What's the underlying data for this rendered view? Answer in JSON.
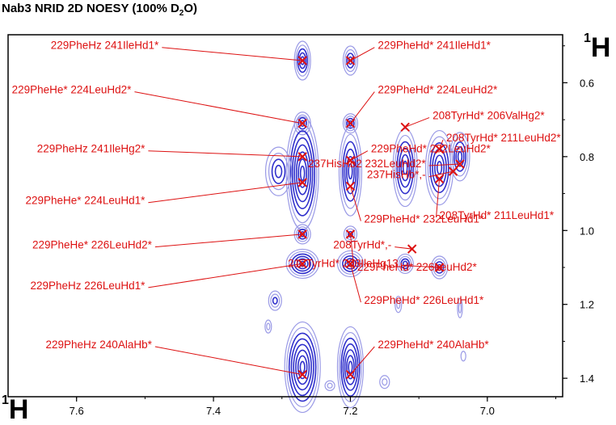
{
  "title": {
    "main": "Nab3 NRID  2D NOESY (100% D",
    "subscript": "2",
    "suffix": "O)"
  },
  "axis_labels": {
    "right": {
      "sup": "1",
      "text": "H"
    },
    "bottom": {
      "sup": "1",
      "text": "H"
    }
  },
  "colors": {
    "contour": "#3030cc",
    "contour_light": "#9a9ae6",
    "annotation": "#dd1111",
    "frame": "#000000"
  },
  "chart_data": {
    "type": "heatmap",
    "subtype": "2D NMR NOESY contour plot",
    "xlabel": "1H",
    "ylabel": "1H",
    "xlim": [
      7.7,
      6.89
    ],
    "ylim": [
      0.47,
      1.45
    ],
    "x_ticks": [
      7.6,
      7.4,
      7.2,
      7.0
    ],
    "x_tick_labels": [
      "7.6",
      "7.4",
      "7.2",
      "7.0"
    ],
    "y_ticks": [
      0.6,
      0.8,
      1.0,
      1.2,
      1.4
    ],
    "y_tick_labels": [
      "0.6",
      "0.8",
      "1.0",
      "1.2",
      "1.4"
    ],
    "peaks": [
      {
        "label": "229PheHz 241IleHd1*",
        "x": 7.27,
        "y": 0.54,
        "lx": 7.48,
        "ly": 0.5
      },
      {
        "label": "229PheHd* 241IleHd1*",
        "x": 7.2,
        "y": 0.54,
        "lx": 7.16,
        "ly": 0.5
      },
      {
        "label": "229PheHe* 224LeuHd2*",
        "x": 7.27,
        "y": 0.71,
        "lx": 7.52,
        "ly": 0.62
      },
      {
        "label": "229PheHd* 224LeuHd2*",
        "x": 7.2,
        "y": 0.71,
        "lx": 7.16,
        "ly": 0.62
      },
      {
        "label": "208TyrHd* 206ValHg2*",
        "x": 7.12,
        "y": 0.72,
        "lx": 7.08,
        "ly": 0.69
      },
      {
        "label": "208TyrHd* 211LeuHd2*",
        "x": 7.07,
        "y": 0.78,
        "lx": 7.06,
        "ly": 0.75
      },
      {
        "label": "229PheHd* 232LeuHd2*",
        "x": 7.2,
        "y": 0.81,
        "lx": 7.17,
        "ly": 0.78
      },
      {
        "label": "229PheHz 241IleHg2*",
        "x": 7.27,
        "y": 0.8,
        "lx": 7.5,
        "ly": 0.78
      },
      {
        "label": "237HisHb2 232LeuHd2*",
        "x": 7.04,
        "y": 0.82,
        "lx": 7.09,
        "ly": 0.82
      },
      {
        "label": "237HisHb*,-",
        "x": 7.05,
        "y": 0.84,
        "lx": 7.09,
        "ly": 0.85
      },
      {
        "label": "229PheHe* 224LeuHd1*",
        "x": 7.27,
        "y": 0.87,
        "lx": 7.5,
        "ly": 0.92
      },
      {
        "label": "229PheHd* 232LeuHd1*",
        "x": 7.2,
        "y": 0.88,
        "lx": 7.18,
        "ly": 0.97
      },
      {
        "label": "208TyrHd* 211LeuHd1*",
        "x": 7.07,
        "y": 0.86,
        "lx": 7.07,
        "ly": 0.96
      },
      {
        "label": "229PheHe* 226LeuHd2*",
        "x": 7.27,
        "y": 1.01,
        "lx": 7.49,
        "ly": 1.04
      },
      {
        "label": "208TyrHd*,-",
        "x": 7.11,
        "y": 1.05,
        "lx": 7.14,
        "ly": 1.04
      },
      {
        "label": "229PheHd* 226LeuHd2*",
        "x": 7.2,
        "y": 1.01,
        "lx": 7.19,
        "ly": 1.1
      },
      {
        "label": "217TyrHd* 208IleHg13",
        "x": 7.07,
        "y": 1.1,
        "lx": 7.13,
        "ly": 1.09
      },
      {
        "label": "229PheHz 226LeuHd1*",
        "x": 7.27,
        "y": 1.09,
        "lx": 7.5,
        "ly": 1.15
      },
      {
        "label": "229PheHd* 226LeuHd1*",
        "x": 7.2,
        "y": 1.09,
        "lx": 7.18,
        "ly": 1.19
      },
      {
        "label": "229PheHz 240AlaHb*",
        "x": 7.27,
        "y": 1.39,
        "lx": 7.49,
        "ly": 1.31
      },
      {
        "label": "229PheHd* 240AlaHb*",
        "x": 7.2,
        "y": 1.39,
        "lx": 7.16,
        "ly": 1.31
      }
    ]
  }
}
